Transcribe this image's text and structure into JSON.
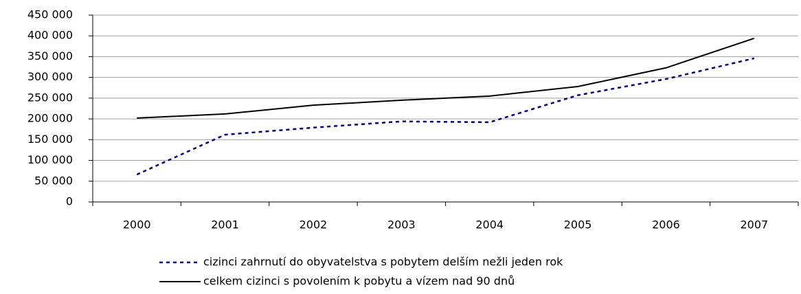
{
  "chart_data": {
    "type": "line",
    "categories": [
      "2000",
      "2001",
      "2002",
      "2003",
      "2004",
      "2005",
      "2006",
      "2007"
    ],
    "series": [
      {
        "name": "cizinci zahrnutí do obyvatelstva s pobytem delším nežli jeden rok",
        "color": "#000080",
        "dash": true,
        "values": [
          66000,
          162000,
          179000,
          194000,
          192000,
          257000,
          296000,
          346000
        ]
      },
      {
        "name": "celkem cizinci s povolením k pobytu a vízem nad 90 dnů",
        "color": "#000000",
        "dash": false,
        "values": [
          202000,
          212000,
          233000,
          245000,
          255000,
          278000,
          323000,
          394000
        ]
      }
    ],
    "ylim": [
      0,
      450000
    ],
    "yticks": [
      0,
      {
        "value": 50000,
        "label": "50 000"
      },
      {
        "value": 100000,
        "label": "100 000"
      },
      {
        "value": 150000,
        "label": "150 000"
      },
      {
        "value": 200000,
        "label": "200 000"
      },
      {
        "value": 250000,
        "label": "250 000"
      },
      {
        "value": 300000,
        "label": "300 000"
      },
      {
        "value": 350000,
        "label": "350 000"
      },
      {
        "value": 400000,
        "label": "400 000"
      },
      {
        "value": 450000,
        "label": "450 000"
      }
    ],
    "grid": true,
    "legend": "bottom"
  }
}
